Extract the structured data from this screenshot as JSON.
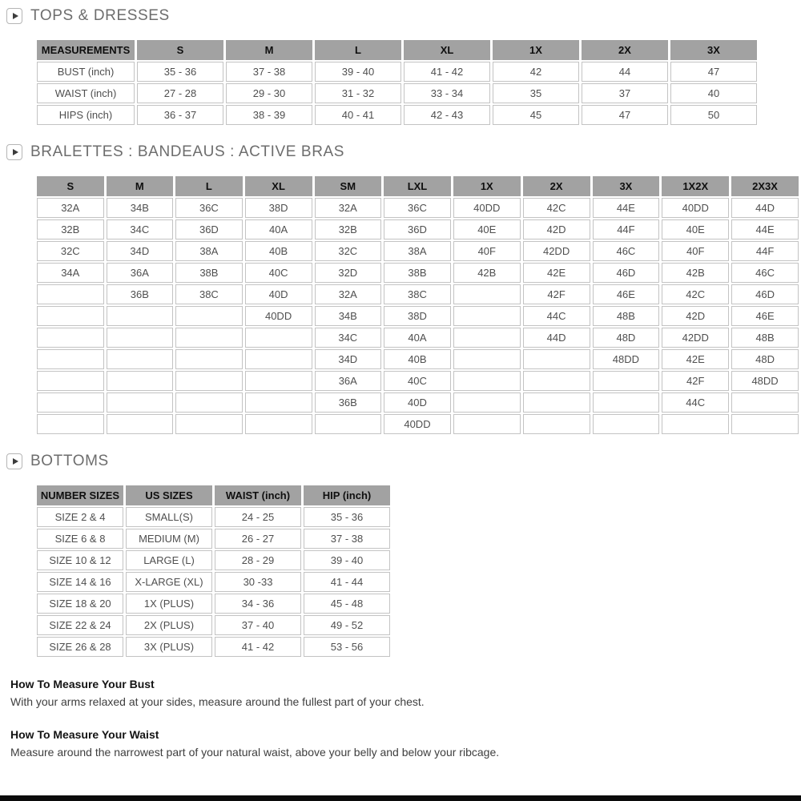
{
  "sections": [
    {
      "title": "TOPS & DRESSES",
      "table": {
        "headers": [
          "MEASUREMENTS",
          "S",
          "M",
          "L",
          "XL",
          "1X",
          "2X",
          "3X"
        ],
        "rows": [
          [
            "BUST (inch)",
            "35 - 36",
            "37 - 38",
            "39 - 40",
            "41 - 42",
            "42",
            "44",
            "47"
          ],
          [
            "WAIST (inch)",
            "27 - 28",
            "29 - 30",
            "31 - 32",
            "33 - 34",
            "35",
            "37",
            "40"
          ],
          [
            "HIPS (inch)",
            "36 - 37",
            "38 - 39",
            "40 - 41",
            "42 - 43",
            "45",
            "47",
            "50"
          ]
        ]
      }
    },
    {
      "title": "BRALETTES : BANDEAUS : ACTIVE BRAS",
      "table": {
        "headers": [
          "S",
          "M",
          "L",
          "XL",
          "SM",
          "LXL",
          "1X",
          "2X",
          "3X",
          "1X2X",
          "2X3X"
        ],
        "rows": [
          [
            "32A",
            "34B",
            "36C",
            "38D",
            "32A",
            "36C",
            "40DD",
            "42C",
            "44E",
            "40DD",
            "44D"
          ],
          [
            "32B",
            "34C",
            "36D",
            "40A",
            "32B",
            "36D",
            "40E",
            "42D",
            "44F",
            "40E",
            "44E"
          ],
          [
            "32C",
            "34D",
            "38A",
            "40B",
            "32C",
            "38A",
            "40F",
            "42DD",
            "46C",
            "40F",
            "44F"
          ],
          [
            "34A",
            "36A",
            "38B",
            "40C",
            "32D",
            "38B",
            "42B",
            "42E",
            "46D",
            "42B",
            "46C"
          ],
          [
            "",
            "36B",
            "38C",
            "40D",
            "32A",
            "38C",
            "",
            "42F",
            "46E",
            "42C",
            "46D"
          ],
          [
            "",
            "",
            "",
            "40DD",
            "34B",
            "38D",
            "",
            "44C",
            "48B",
            "42D",
            "46E"
          ],
          [
            "",
            "",
            "",
            "",
            "34C",
            "40A",
            "",
            "44D",
            "48D",
            "42DD",
            "48B"
          ],
          [
            "",
            "",
            "",
            "",
            "34D",
            "40B",
            "",
            "",
            "48DD",
            "42E",
            "48D"
          ],
          [
            "",
            "",
            "",
            "",
            "36A",
            "40C",
            "",
            "",
            "",
            "42F",
            "48DD"
          ],
          [
            "",
            "",
            "",
            "",
            "36B",
            "40D",
            "",
            "",
            "",
            "44C",
            ""
          ],
          [
            "",
            "",
            "",
            "",
            "",
            "40DD",
            "",
            "",
            "",
            "",
            ""
          ]
        ]
      }
    },
    {
      "title": "BOTTOMS",
      "table": {
        "headers": [
          "NUMBER SIZES",
          "US SIZES",
          "WAIST (inch)",
          "HIP (inch)"
        ],
        "rows": [
          [
            "SIZE 2 & 4",
            "SMALL(S)",
            "24 - 25",
            "35 - 36"
          ],
          [
            "SIZE 6 & 8",
            "MEDIUM (M)",
            "26 - 27",
            "37 - 38"
          ],
          [
            "SIZE 10 & 12",
            "LARGE (L)",
            "28 - 29",
            "39 - 40"
          ],
          [
            "SIZE 14 & 16",
            "X-LARGE (XL)",
            "30 -33",
            "41 - 44"
          ],
          [
            "SIZE 18 & 20",
            "1X (PLUS)",
            "34 - 36",
            "45 - 48"
          ],
          [
            "SIZE 22 & 24",
            "2X (PLUS)",
            "37 - 40",
            "49 - 52"
          ],
          [
            "SIZE 26 & 28",
            "3X (PLUS)",
            "41 - 42",
            "53 - 56"
          ]
        ]
      }
    }
  ],
  "notes": [
    {
      "heading": "How To Measure Your Bust",
      "body": "With your arms relaxed at your sides, measure around the fullest part of your chest."
    },
    {
      "heading": "How To Measure Your Waist",
      "body": "Measure around the narrowest part of your natural waist, above your belly and below your ribcage."
    }
  ],
  "icons": [
    {
      "name": "play-icon",
      "meaning": "expand-section-toggle"
    }
  ],
  "colors": {
    "table_header_bg": "#a2a2a2",
    "table_header_text": "#0f0f0f",
    "cell_border": "#c3c3c3",
    "cell_text": "#4f4f4f",
    "section_title_text": "#6d6d6d",
    "note_heading_text": "#141414",
    "note_body_text": "#3e3e3e",
    "footer_bar": "#0b0b0b",
    "page_bg": "#ffffff"
  }
}
